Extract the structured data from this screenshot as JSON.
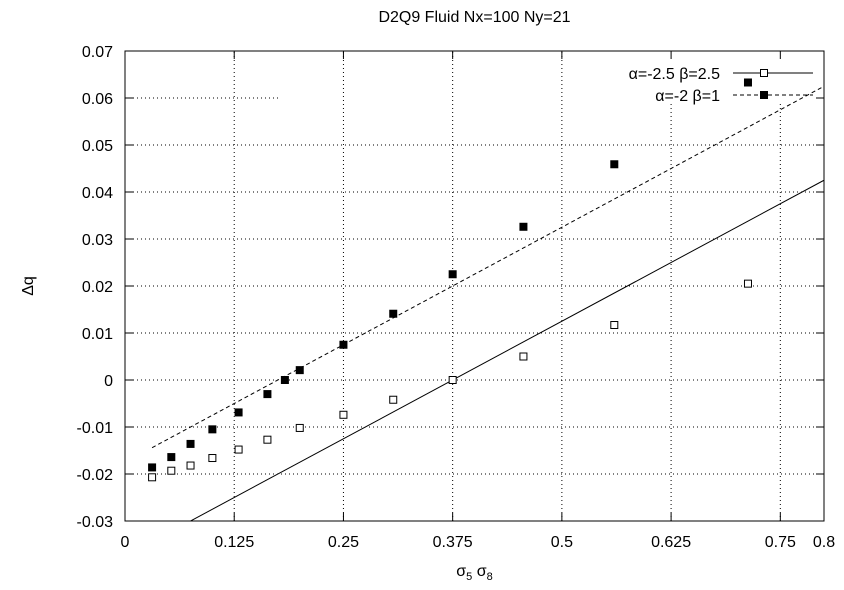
{
  "chart_data": {
    "type": "line",
    "title": "D2Q9 Fluid Nx=100 Ny=21",
    "xlabel": "σ5 σ8",
    "xlabel_parts": {
      "s1": "σ",
      "sub1": "5",
      "s2": " σ",
      "sub2": "8"
    },
    "ylabel": "Δq",
    "xlim": [
      0,
      0.8
    ],
    "ylim": [
      -0.03,
      0.07
    ],
    "xticks": [
      0,
      0.125,
      0.25,
      0.375,
      0.5,
      0.625,
      0.75,
      0.8
    ],
    "xtick_labels": [
      "0",
      "0.125",
      "0.25",
      "0.375",
      "0.5",
      "0.625",
      "0.75",
      "0.8"
    ],
    "yticks": [
      -0.03,
      -0.02,
      -0.01,
      0,
      0.01,
      0.02,
      0.03,
      0.04,
      0.05,
      0.06,
      0.07
    ],
    "ytick_labels": [
      "-0.03",
      "-0.02",
      "-0.01",
      "0",
      "0.01",
      "0.02",
      "0.03",
      "0.04",
      "0.05",
      "0.06",
      "0.07"
    ],
    "grid": true,
    "legend_position": "top-right",
    "series": [
      {
        "name": "α=-2.5 β=2.5",
        "line": "solid",
        "marker": "open-square",
        "fit": {
          "slope": 0.1,
          "intercept": -0.0375
        },
        "x": [
          0.031,
          0.053,
          0.075,
          0.1,
          0.13,
          0.163,
          0.2,
          0.25,
          0.307,
          0.375,
          0.456,
          0.56,
          0.713
        ],
        "y": [
          -0.0207,
          -0.0193,
          -0.0182,
          -0.0166,
          -0.0148,
          -0.0127,
          -0.0102,
          -0.0074,
          -0.0042,
          0.0,
          0.005,
          0.0117,
          0.0205
        ]
      },
      {
        "name": "α=-2 β=1",
        "line": "dashed",
        "marker": "filled-square",
        "fit": {
          "slope": 0.1,
          "intercept": -0.0175
        },
        "x": [
          0.031,
          0.053,
          0.075,
          0.1,
          0.13,
          0.163,
          0.183,
          0.2,
          0.25,
          0.307,
          0.375,
          0.456,
          0.56,
          0.713
        ],
        "y": [
          -0.0186,
          -0.0164,
          -0.0136,
          -0.0105,
          -0.0069,
          -0.003,
          0.0,
          0.0021,
          0.0075,
          0.0141,
          0.0225,
          0.0326,
          0.0459,
          0.0633
        ]
      }
    ]
  }
}
